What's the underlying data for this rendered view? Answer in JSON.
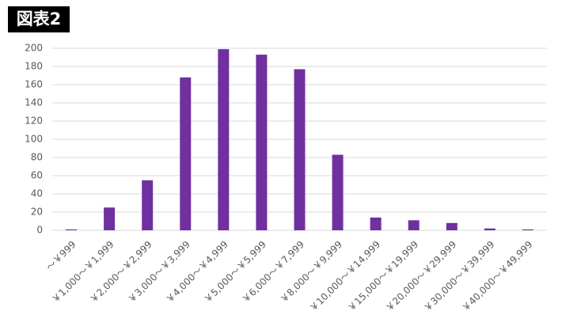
{
  "chart_data": {
    "type": "bar",
    "title": "図表2",
    "categories": [
      "～￥999",
      "￥1,000～￥1,999",
      "￥2,000～￥2,999",
      "￥3,000～￥3,999",
      "￥4,000～￥4,999",
      "￥5,000～￥5,999",
      "￥6,000～￥7,999",
      "￥8,000～￥9,999",
      "￥10,000～￥14,999",
      "￥15,000～￥19,999",
      "￥20,000～￥29,999",
      "￥30,000～￥39,999",
      "￥40,000～￥49,999"
    ],
    "values": [
      1,
      25,
      55,
      168,
      199,
      193,
      177,
      83,
      14,
      11,
      8,
      2,
      1
    ],
    "color": "#7030a0",
    "ylim": [
      0,
      200
    ],
    "yticks": [
      0,
      20,
      40,
      60,
      80,
      100,
      120,
      140,
      160,
      180,
      200
    ],
    "grid": true
  }
}
